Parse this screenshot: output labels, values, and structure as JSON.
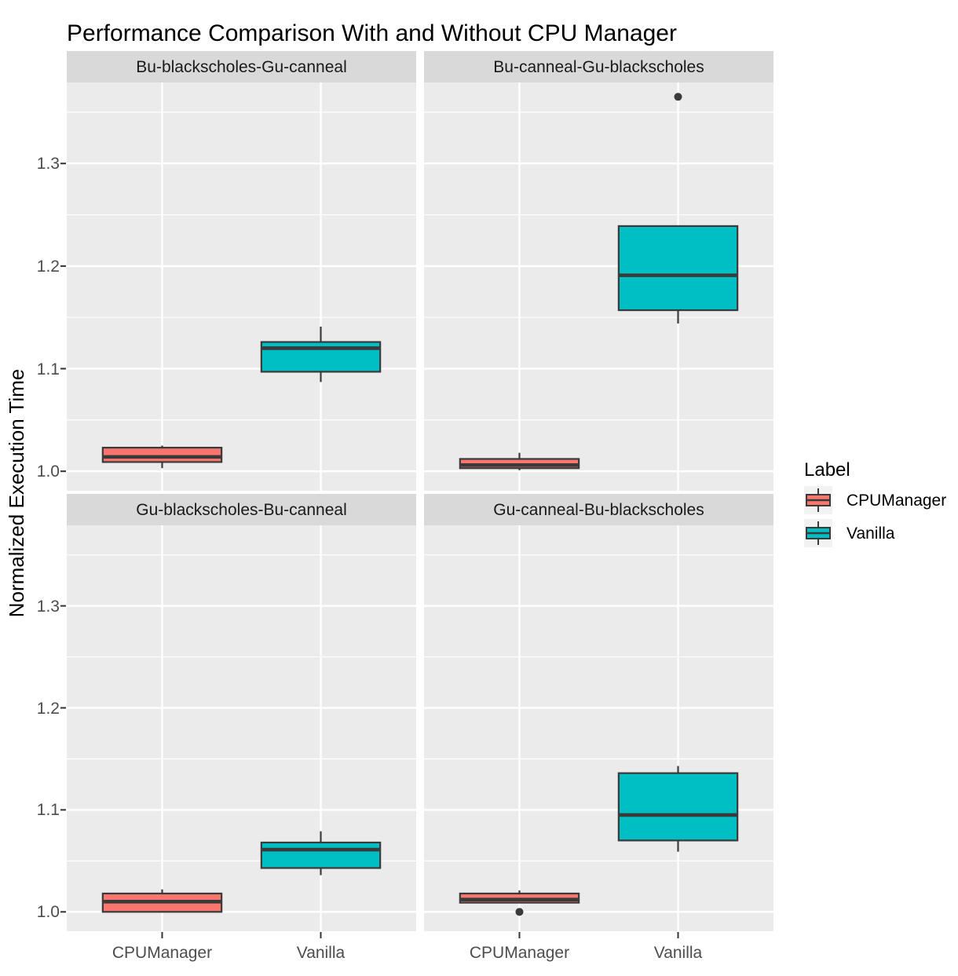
{
  "chart_data": {
    "type": "boxplot",
    "title": "Performance Comparison With and Without CPU Manager",
    "ylabel": "Normalized Execution Time",
    "xlabel": "",
    "ylim": [
      0.981,
      1.379
    ],
    "yticks": [
      1.0,
      1.1,
      1.2,
      1.3
    ],
    "ytick_labels": [
      "1.0",
      "1.1",
      "1.2",
      "1.3"
    ],
    "minor_yticks": [
      1.05,
      1.15,
      1.25,
      1.35
    ],
    "grid": true,
    "legend_position": "right",
    "categories": [
      "CPUManager",
      "Vanilla"
    ],
    "legend": {
      "title": "Label",
      "entries": [
        {
          "label": "CPUManager",
          "color": "#F8766D"
        },
        {
          "label": "Vanilla",
          "color": "#00BFC4"
        }
      ]
    },
    "facets": [
      {
        "title": "Bu-blackscholes-Gu-canneal",
        "boxes": [
          {
            "group": "CPUManager",
            "min": 1.003,
            "q1": 1.009,
            "median": 1.014,
            "q3": 1.023,
            "max": 1.025,
            "outliers": []
          },
          {
            "group": "Vanilla",
            "min": 1.087,
            "q1": 1.097,
            "median": 1.12,
            "q3": 1.126,
            "max": 1.141,
            "outliers": []
          }
        ]
      },
      {
        "title": "Bu-canneal-Gu-blackscholes",
        "boxes": [
          {
            "group": "CPUManager",
            "min": 1.001,
            "q1": 1.003,
            "median": 1.006,
            "q3": 1.012,
            "max": 1.018,
            "outliers": []
          },
          {
            "group": "Vanilla",
            "min": 1.144,
            "q1": 1.157,
            "median": 1.191,
            "q3": 1.239,
            "max": 1.239,
            "outliers": [
              1.365
            ]
          }
        ]
      },
      {
        "title": "Gu-blackscholes-Bu-canneal",
        "boxes": [
          {
            "group": "CPUManager",
            "min": 1.0,
            "q1": 1.0,
            "median": 1.01,
            "q3": 1.018,
            "max": 1.022,
            "outliers": []
          },
          {
            "group": "Vanilla",
            "min": 1.036,
            "q1": 1.043,
            "median": 1.061,
            "q3": 1.068,
            "max": 1.079,
            "outliers": []
          }
        ]
      },
      {
        "title": "Gu-canneal-Bu-blackscholes",
        "boxes": [
          {
            "group": "CPUManager",
            "min": 1.009,
            "q1": 1.009,
            "median": 1.012,
            "q3": 1.018,
            "max": 1.021,
            "outliers": [
              1.0
            ]
          },
          {
            "group": "Vanilla",
            "min": 1.059,
            "q1": 1.07,
            "median": 1.095,
            "q3": 1.136,
            "max": 1.143,
            "outliers": []
          }
        ]
      }
    ],
    "colors": {
      "CPUManager": "#F8766D",
      "Vanilla": "#00BFC4",
      "panel_bg": "#EBEBEB",
      "strip_bg": "#D9D9D9",
      "grid": "#FFFFFF",
      "box_stroke": "#3A3A3A",
      "outlier": "#3A3A3A",
      "tick_mark": "#333333",
      "tick_label": "#4D4D4D"
    }
  }
}
